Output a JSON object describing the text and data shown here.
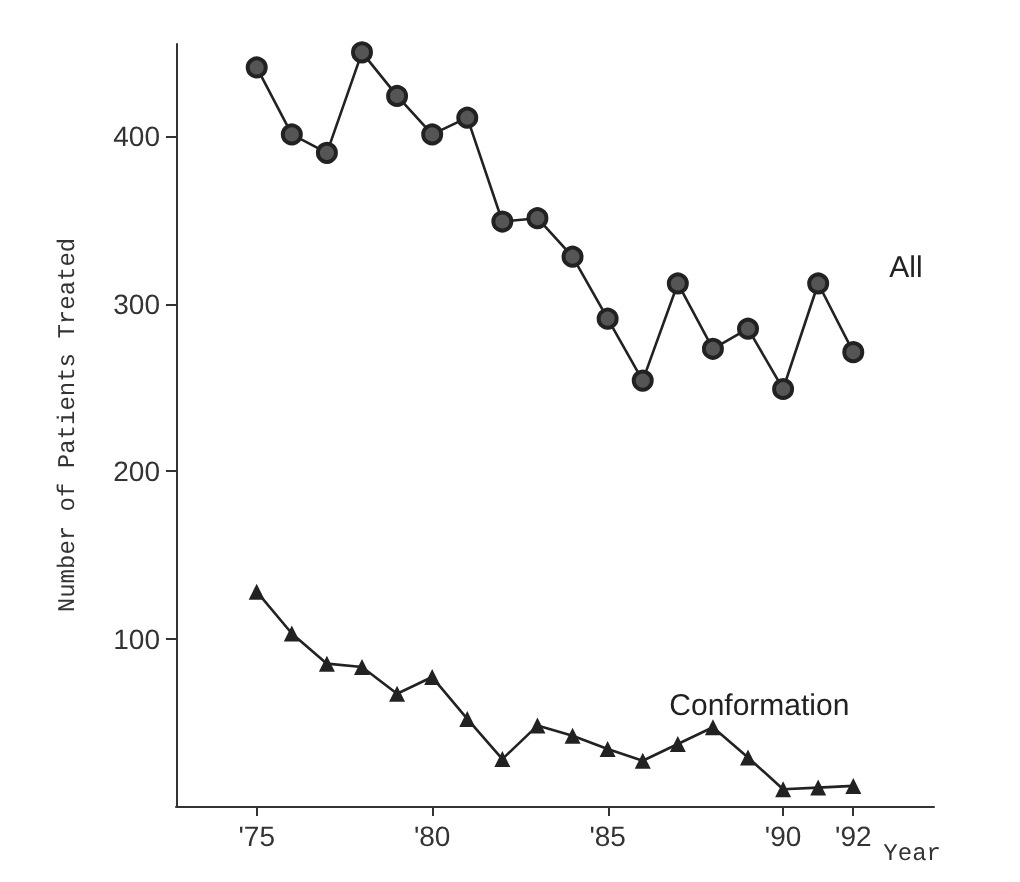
{
  "chart_data": {
    "type": "line",
    "xlabel": "Year",
    "ylabel": "Number of Patients Treated",
    "x": [
      1975,
      1976,
      1977,
      1978,
      1979,
      1980,
      1981,
      1982,
      1983,
      1984,
      1985,
      1986,
      1987,
      1988,
      1989,
      1990,
      1991,
      1992
    ],
    "series": [
      {
        "name": "All",
        "color": "#222222",
        "marker": "circle",
        "values": [
          441,
          401,
          390,
          450,
          424,
          401,
          411,
          349,
          351,
          328,
          291,
          254,
          312,
          273,
          285,
          249,
          312,
          271
        ]
      },
      {
        "name": "Conformation",
        "color": "#222222",
        "marker": "triangle",
        "values": [
          128,
          103,
          85,
          83,
          67,
          77,
          52,
          28,
          48,
          42,
          34,
          27,
          37,
          47,
          29,
          10,
          11,
          12
        ]
      }
    ],
    "xlim": [
      1972.7,
      1994.3
    ],
    "xticks": [
      {
        "value": 1975,
        "label": "'75"
      },
      {
        "value": 1980,
        "label": "'80"
      },
      {
        "value": 1985,
        "label": "'85"
      },
      {
        "value": 1990,
        "label": "'90"
      },
      {
        "value": 1992,
        "label": "'92"
      }
    ],
    "ylim": [
      0,
      455
    ],
    "yticks": [
      100,
      200,
      300,
      400
    ],
    "grid": false,
    "legend": false,
    "line_style": "solid"
  }
}
